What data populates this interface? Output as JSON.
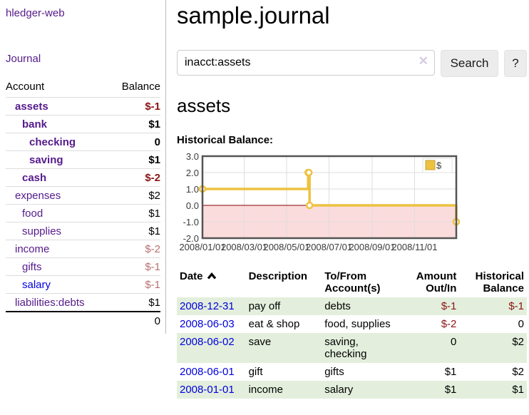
{
  "app": {
    "title": "hledger-web"
  },
  "sidebar": {
    "journal_label": "Journal",
    "table": {
      "account_header": "Account",
      "balance_header": "Balance"
    },
    "accounts": [
      {
        "name": "assets",
        "balance": "$-1"
      },
      {
        "name": "bank",
        "balance": "$1"
      },
      {
        "name": "checking",
        "balance": "0"
      },
      {
        "name": "saving",
        "balance": "$1"
      },
      {
        "name": "cash",
        "balance": "$-2"
      },
      {
        "name": "expenses",
        "balance": "$2"
      },
      {
        "name": "food",
        "balance": "$1"
      },
      {
        "name": "supplies",
        "balance": "$1"
      },
      {
        "name": "income",
        "balance": "$-2"
      },
      {
        "name": "gifts",
        "balance": "$-1"
      },
      {
        "name": "salary",
        "balance": "$-1"
      },
      {
        "name": "liabilities:debts",
        "balance": "$1"
      }
    ],
    "total": "0"
  },
  "main": {
    "title": "sample.journal",
    "search": {
      "query": "inacct:assets",
      "clear_icon": "✕",
      "button_label": "Search",
      "help_label": "?"
    },
    "account_heading": "assets",
    "chart_label": "Historical Balance:",
    "register": {
      "headers": {
        "date": "Date",
        "description": "Description",
        "accounts": "To/From Account(s)",
        "amount": "Amount Out/In",
        "balance": "Historical Balance"
      },
      "rows": [
        {
          "date": "2008-12-31",
          "description": "pay off",
          "accounts": "debts",
          "amount": "$-1",
          "balance": "$-1"
        },
        {
          "date": "2008-06-03",
          "description": "eat & shop",
          "accounts": "food, supplies",
          "amount": "$-2",
          "balance": "0"
        },
        {
          "date": "2008-06-02",
          "description": "save",
          "accounts": "saving, checking",
          "amount": "0",
          "balance": "$2"
        },
        {
          "date": "2008-06-01",
          "description": "gift",
          "accounts": "gifts",
          "amount": "$1",
          "balance": "$2"
        },
        {
          "date": "2008-01-01",
          "description": "income",
          "accounts": "salary",
          "amount": "$1",
          "balance": "$1"
        }
      ]
    }
  },
  "chart_data": {
    "type": "line",
    "step": true,
    "title": "Historical Balance",
    "series": [
      {
        "name": "$",
        "color": "#edc240",
        "points": [
          [
            "2008-01-01",
            1
          ],
          [
            "2008-06-01",
            2
          ],
          [
            "2008-06-02",
            2
          ],
          [
            "2008-06-03",
            0
          ],
          [
            "2008-12-31",
            -1
          ]
        ]
      }
    ],
    "ylim": [
      -2,
      3
    ],
    "yticks": [
      3.0,
      2.0,
      1.0,
      0.0,
      -1.0,
      -2.0
    ],
    "xlim": [
      "2008-01-01",
      "2008-12-31"
    ],
    "xticks": [
      "2008/01/01",
      "2008/03/01",
      "2008/05/01",
      "2008/07/01",
      "2008/09/01",
      "2008/11/01"
    ],
    "grid": true,
    "negative_region_color": "#fbdcdc",
    "zero_line_color": "#8b0000",
    "border_color": "#545454",
    "legend": {
      "label": "$",
      "position": "top-right"
    }
  }
}
